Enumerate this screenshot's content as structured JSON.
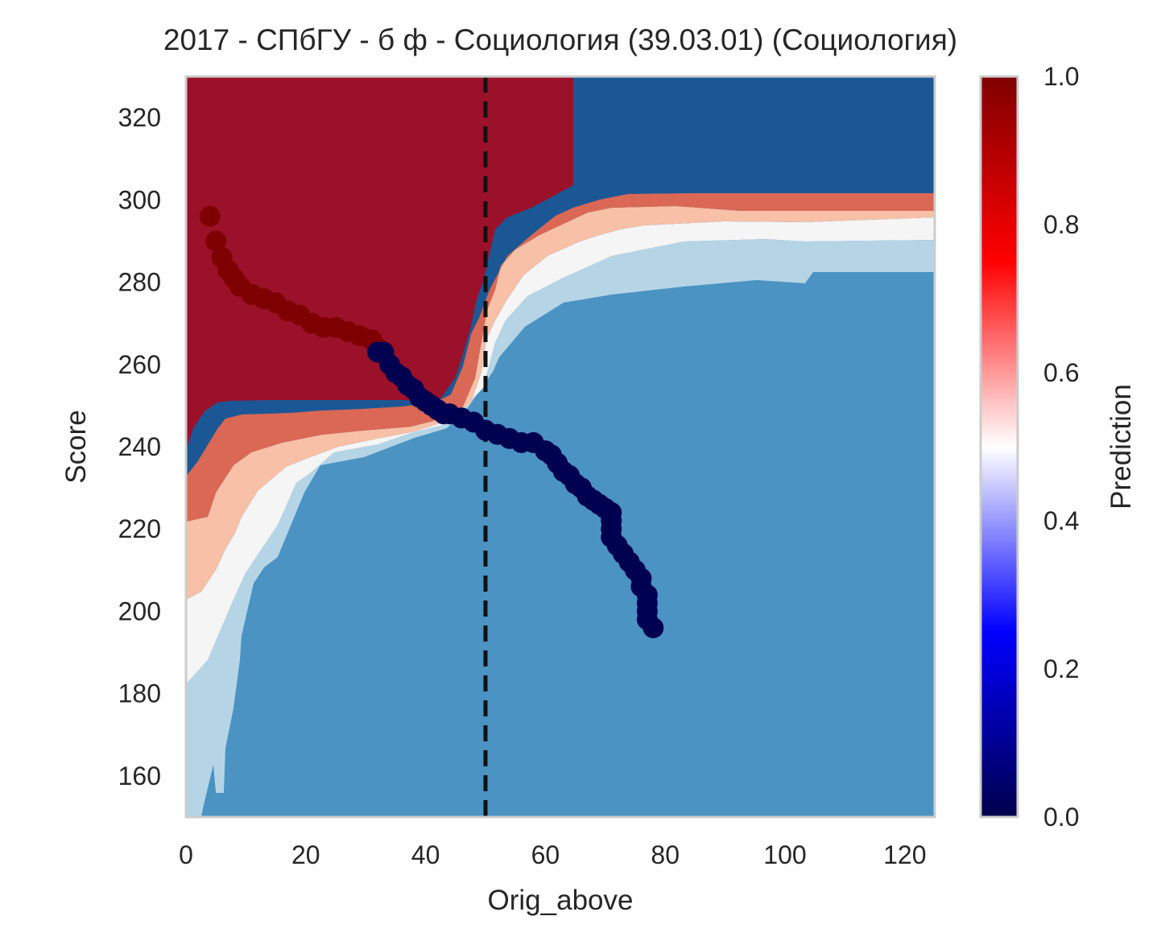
{
  "chart_data": {
    "type": "contour+scatter",
    "title": "2017 - СПбГУ - б ф - Социология (39.03.01) (Социология)",
    "xlabel": "Orig_above",
    "ylabel": "Score",
    "xlim": [
      0,
      125
    ],
    "ylim": [
      150,
      330
    ],
    "xticks": [
      0,
      20,
      40,
      60,
      80,
      100,
      120
    ],
    "yticks": [
      160,
      180,
      200,
      220,
      240,
      260,
      280,
      300,
      320
    ],
    "grid": false,
    "threshold_line": {
      "x": 50,
      "style": "dashed",
      "color": "#111111"
    },
    "colorbar": {
      "label": "Prediction",
      "range": [
        0,
        1
      ],
      "ticks": [
        "0.0",
        "0.2",
        "0.4",
        "0.6",
        "0.8",
        "1.0"
      ],
      "colormap": "seismic"
    },
    "contour_levels": [
      {
        "range": [
          0.0,
          0.2
        ],
        "color": "#1b5795"
      },
      {
        "range": [
          0.2,
          0.3
        ],
        "color": "#4a93c3"
      },
      {
        "range": [
          0.3,
          0.4
        ],
        "color": "#b5d5e7"
      },
      {
        "range": [
          0.4,
          0.5
        ],
        "color": "#f5f5f5"
      },
      {
        "range": [
          0.5,
          0.6
        ],
        "color": "#f8c0a7"
      },
      {
        "range": [
          0.6,
          0.8
        ],
        "color": "#da6854"
      },
      {
        "range": [
          0.8,
          1.0
        ],
        "color": "#9b1129"
      }
    ],
    "series": [
      {
        "prediction": 1,
        "color": "#7f0000",
        "points": [
          [
            4,
            296
          ],
          [
            5,
            290
          ],
          [
            6,
            286
          ],
          [
            7,
            283
          ],
          [
            8,
            281
          ],
          [
            9,
            279
          ],
          [
            11,
            277
          ],
          [
            13,
            276
          ],
          [
            15,
            275
          ],
          [
            17,
            273
          ],
          [
            19,
            272
          ],
          [
            21,
            270
          ],
          [
            23,
            269
          ],
          [
            25,
            269
          ],
          [
            27,
            268
          ],
          [
            29,
            267
          ],
          [
            31,
            266
          ],
          [
            32,
            264
          ]
        ]
      },
      {
        "prediction": 0,
        "color": "#000050",
        "points": [
          [
            32,
            263
          ],
          [
            33,
            263
          ],
          [
            34,
            260
          ],
          [
            35,
            258
          ],
          [
            36,
            257
          ],
          [
            37,
            255
          ],
          [
            38,
            254
          ],
          [
            39,
            252
          ],
          [
            40,
            251
          ],
          [
            41,
            250
          ],
          [
            42,
            249
          ],
          [
            43,
            248
          ],
          [
            44,
            248
          ],
          [
            46,
            247
          ],
          [
            48,
            246
          ],
          [
            50,
            244
          ],
          [
            52,
            243
          ],
          [
            54,
            242
          ],
          [
            56,
            241
          ],
          [
            58,
            241
          ],
          [
            60,
            239
          ],
          [
            61,
            238
          ],
          [
            62,
            236
          ],
          [
            63,
            234
          ],
          [
            64,
            233
          ],
          [
            65,
            231
          ],
          [
            66,
            230
          ],
          [
            67,
            228
          ],
          [
            68,
            227
          ],
          [
            69,
            226
          ],
          [
            70,
            225
          ],
          [
            71,
            224
          ],
          [
            71,
            222
          ],
          [
            71,
            220
          ],
          [
            71,
            218
          ],
          [
            72,
            216
          ],
          [
            73,
            214
          ],
          [
            74,
            212
          ],
          [
            75,
            210
          ],
          [
            76,
            208
          ],
          [
            76,
            206
          ],
          [
            77,
            204
          ],
          [
            77,
            202
          ],
          [
            77,
            200
          ],
          [
            77,
            198
          ],
          [
            78,
            196
          ]
        ]
      }
    ]
  }
}
